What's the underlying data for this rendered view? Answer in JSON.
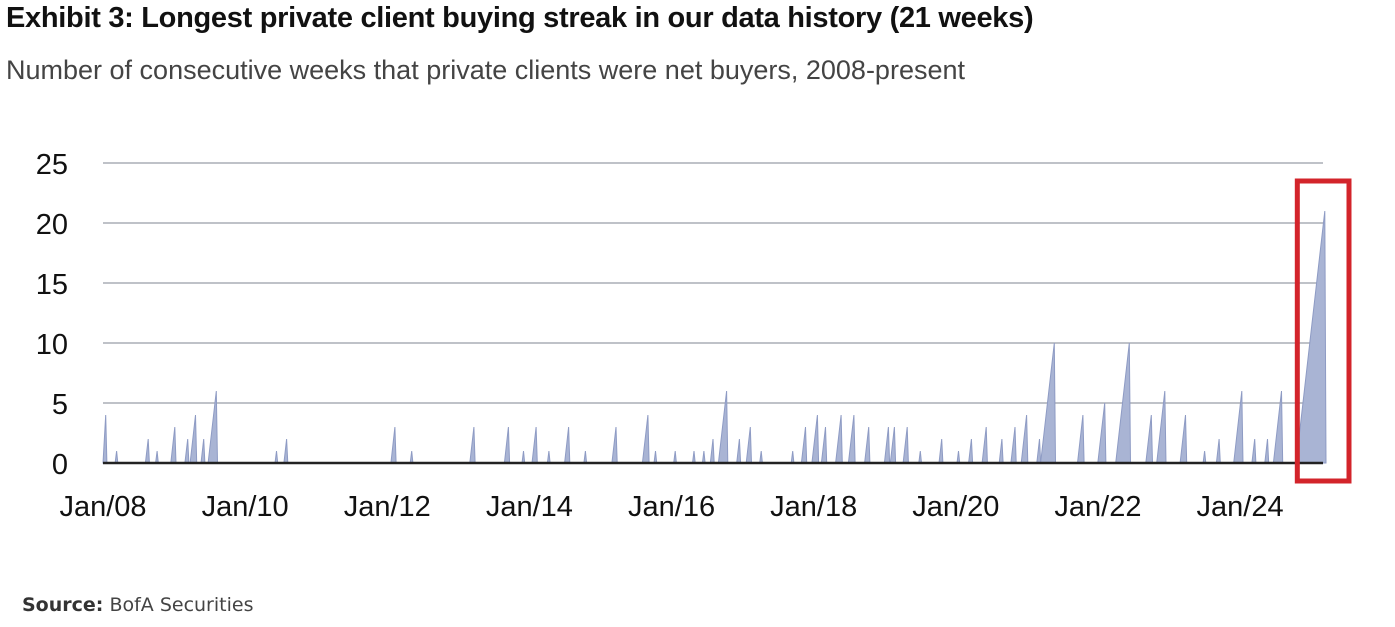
{
  "title": "Exhibit 3: Longest private client buying streak in our data history (21 weeks)",
  "subtitle": "Number of consecutive weeks that private clients were net buyers, 2008-present",
  "source": {
    "label": "Source:",
    "text": "BofA Securities"
  },
  "colors": {
    "area": "#a9b4d4",
    "area_stroke": "#8e9bc4",
    "grid": "#bfc2c8",
    "axis": "#222222",
    "highlight": "#d3242b",
    "text": "#111111"
  },
  "chart_data": {
    "type": "area",
    "x_unit": "date",
    "xlim": [
      "2008-01",
      "2025-03"
    ],
    "ylim": [
      0,
      25
    ],
    "yticks": [
      0,
      5,
      10,
      15,
      20,
      25
    ],
    "xticks": [
      {
        "date": "2008-01",
        "label": "Jan/08"
      },
      {
        "date": "2010-01",
        "label": "Jan/10"
      },
      {
        "date": "2012-01",
        "label": "Jan/12"
      },
      {
        "date": "2014-01",
        "label": "Jan/14"
      },
      {
        "date": "2016-01",
        "label": "Jan/16"
      },
      {
        "date": "2018-01",
        "label": "Jan/18"
      },
      {
        "date": "2020-01",
        "label": "Jan/20"
      },
      {
        "date": "2022-01",
        "label": "Jan/22"
      },
      {
        "date": "2024-01",
        "label": "Jan/24"
      }
    ],
    "grid": true,
    "highlight": {
      "type": "box",
      "x_from": "2024-11",
      "x_to": "2025-03"
    },
    "streaks": [
      {
        "end": "2008-01-15",
        "weeks": 4
      },
      {
        "end": "2008-03-10",
        "weeks": 1
      },
      {
        "end": "2008-08-20",
        "weeks": 2
      },
      {
        "end": "2008-10-05",
        "weeks": 1
      },
      {
        "end": "2009-01-05",
        "weeks": 3
      },
      {
        "end": "2009-03-10",
        "weeks": 2
      },
      {
        "end": "2009-04-20",
        "weeks": 4
      },
      {
        "end": "2009-06-01",
        "weeks": 2
      },
      {
        "end": "2009-08-05",
        "weeks": 6
      },
      {
        "end": "2010-06-10",
        "weeks": 1
      },
      {
        "end": "2010-08-01",
        "weeks": 2
      },
      {
        "end": "2012-02-10",
        "weeks": 3
      },
      {
        "end": "2012-05-05",
        "weeks": 1
      },
      {
        "end": "2013-03-20",
        "weeks": 3
      },
      {
        "end": "2013-09-15",
        "weeks": 3
      },
      {
        "end": "2013-12-01",
        "weeks": 1
      },
      {
        "end": "2014-02-05",
        "weeks": 3
      },
      {
        "end": "2014-04-10",
        "weeks": 1
      },
      {
        "end": "2014-07-20",
        "weeks": 3
      },
      {
        "end": "2014-10-15",
        "weeks": 1
      },
      {
        "end": "2015-03-20",
        "weeks": 3
      },
      {
        "end": "2015-09-01",
        "weeks": 4
      },
      {
        "end": "2015-10-10",
        "weeks": 1
      },
      {
        "end": "2016-01-20",
        "weeks": 1
      },
      {
        "end": "2016-04-25",
        "weeks": 1
      },
      {
        "end": "2016-06-15",
        "weeks": 1
      },
      {
        "end": "2016-08-01",
        "weeks": 2
      },
      {
        "end": "2016-10-10",
        "weeks": 6
      },
      {
        "end": "2016-12-15",
        "weeks": 2
      },
      {
        "end": "2017-02-10",
        "weeks": 3
      },
      {
        "end": "2017-04-05",
        "weeks": 1
      },
      {
        "end": "2017-09-15",
        "weeks": 1
      },
      {
        "end": "2017-11-20",
        "weeks": 3
      },
      {
        "end": "2018-01-20",
        "weeks": 4
      },
      {
        "end": "2018-03-01",
        "weeks": 3
      },
      {
        "end": "2018-05-20",
        "weeks": 4
      },
      {
        "end": "2018-07-25",
        "weeks": 4
      },
      {
        "end": "2018-10-10",
        "weeks": 3
      },
      {
        "end": "2019-01-20",
        "weeks": 3
      },
      {
        "end": "2019-02-20",
        "weeks": 3
      },
      {
        "end": "2019-04-25",
        "weeks": 3
      },
      {
        "end": "2019-07-01",
        "weeks": 1
      },
      {
        "end": "2019-10-20",
        "weeks": 2
      },
      {
        "end": "2020-01-15",
        "weeks": 1
      },
      {
        "end": "2020-03-20",
        "weeks": 2
      },
      {
        "end": "2020-06-05",
        "weeks": 3
      },
      {
        "end": "2020-08-25",
        "weeks": 2
      },
      {
        "end": "2020-11-01",
        "weeks": 3
      },
      {
        "end": "2020-12-30",
        "weeks": 4
      },
      {
        "end": "2021-03-05",
        "weeks": 2
      },
      {
        "end": "2021-05-20",
        "weeks": 10
      },
      {
        "end": "2021-10-15",
        "weeks": 4
      },
      {
        "end": "2022-02-05",
        "weeks": 5
      },
      {
        "end": "2022-06-10",
        "weeks": 10
      },
      {
        "end": "2022-10-01",
        "weeks": 4
      },
      {
        "end": "2022-12-10",
        "weeks": 6
      },
      {
        "end": "2023-03-25",
        "weeks": 4
      },
      {
        "end": "2023-07-01",
        "weeks": 1
      },
      {
        "end": "2023-09-15",
        "weeks": 2
      },
      {
        "end": "2024-01-10",
        "weeks": 6
      },
      {
        "end": "2024-03-15",
        "weeks": 2
      },
      {
        "end": "2024-05-20",
        "weeks": 2
      },
      {
        "end": "2024-08-01",
        "weeks": 6
      },
      {
        "end": "2024-11-10",
        "weeks": 2
      },
      {
        "end": "2025-03-10",
        "weeks": 21
      }
    ]
  }
}
